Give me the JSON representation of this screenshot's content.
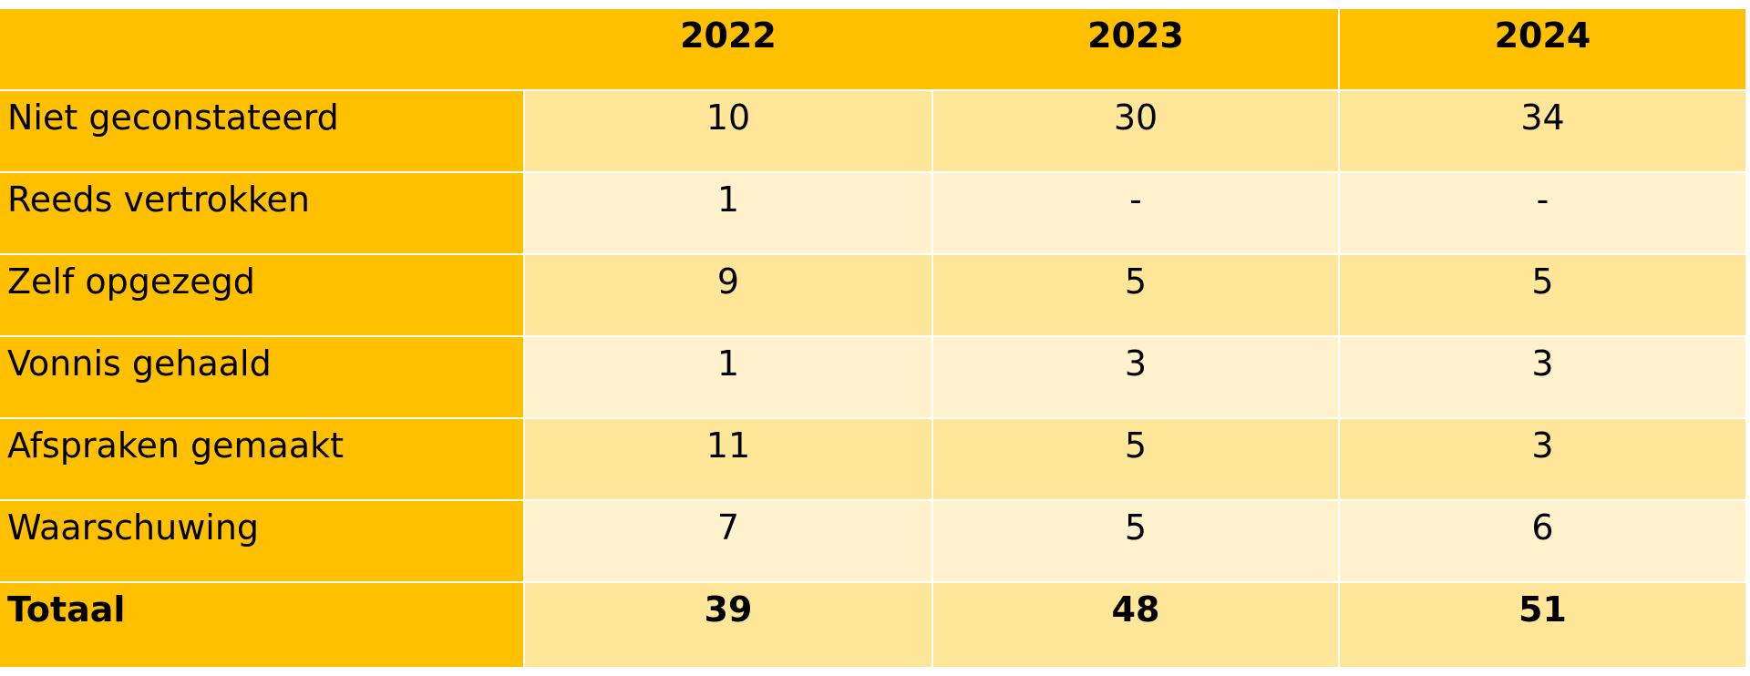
{
  "table": {
    "headers": [
      "",
      "2022",
      "2023",
      "2024"
    ],
    "rows": [
      {
        "label": "Niet geconstateerd",
        "values": [
          "10",
          "30",
          "34"
        ]
      },
      {
        "label": "Reeds vertrokken",
        "values": [
          "1",
          "-",
          "-"
        ]
      },
      {
        "label": "Zelf opgezegd",
        "values": [
          "9",
          "5",
          "5"
        ]
      },
      {
        "label": "Vonnis gehaald",
        "values": [
          "1",
          "3",
          "3"
        ]
      },
      {
        "label": "Afspraken gemaakt",
        "values": [
          "11",
          "5",
          "3"
        ]
      },
      {
        "label": "Waarschuwing",
        "values": [
          "7",
          "5",
          "6"
        ]
      }
    ],
    "total": {
      "label": "Totaal",
      "values": [
        "39",
        "48",
        "51"
      ]
    }
  },
  "colors": {
    "header_fill": "#ffc000",
    "label_fill": "#ffc000",
    "row_dark_fill": "#ffe699",
    "row_light_fill": "#fff2cc"
  }
}
